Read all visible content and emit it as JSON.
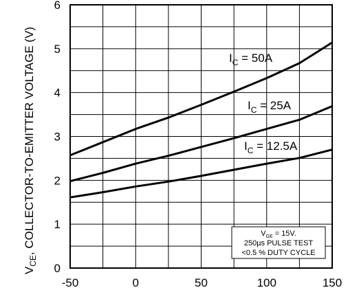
{
  "chart_data": {
    "type": "line",
    "ylabel_main": "V",
    "ylabel_sub": "CE",
    "ylabel_rest": ", COLLECTOR-TO-EMITTER VOLTAGE (V)",
    "xlim": [
      -50,
      150
    ],
    "ylim": [
      0,
      6
    ],
    "x_ticks": [
      -50,
      0,
      50,
      100,
      150
    ],
    "y_ticks": [
      0,
      1,
      2,
      3,
      4,
      5,
      6
    ],
    "grid": true,
    "series": [
      {
        "name": "I_C = 50A",
        "label_main": "I",
        "label_sub": "C",
        "label_rest": " = 50A",
        "x": [
          -50,
          -25,
          0,
          25,
          50,
          75,
          100,
          125,
          150
        ],
        "y": [
          2.57,
          2.87,
          3.17,
          3.43,
          3.72,
          4.02,
          4.33,
          4.67,
          5.14
        ]
      },
      {
        "name": "I_C = 25A",
        "label_main": "I",
        "label_sub": "C",
        "label_rest": " = 25A",
        "x": [
          -50,
          -25,
          0,
          25,
          50,
          75,
          100,
          125,
          150
        ],
        "y": [
          1.98,
          2.17,
          2.38,
          2.56,
          2.76,
          2.96,
          3.17,
          3.38,
          3.69
        ]
      },
      {
        "name": "I_C = 12.5A",
        "label_main": "I",
        "label_sub": "C",
        "label_rest": " = 12.5A",
        "x": [
          -50,
          -25,
          0,
          25,
          50,
          75,
          100,
          125,
          150
        ],
        "y": [
          1.61,
          1.73,
          1.86,
          1.97,
          2.1,
          2.24,
          2.38,
          2.51,
          2.7
        ]
      }
    ],
    "note": {
      "line1_main": "V",
      "line1_sub": "GE",
      "line1_rest": " = 15V.",
      "line2": "250µs PULSE TEST",
      "line3": "<0.5 % DUTY CYCLE"
    }
  }
}
